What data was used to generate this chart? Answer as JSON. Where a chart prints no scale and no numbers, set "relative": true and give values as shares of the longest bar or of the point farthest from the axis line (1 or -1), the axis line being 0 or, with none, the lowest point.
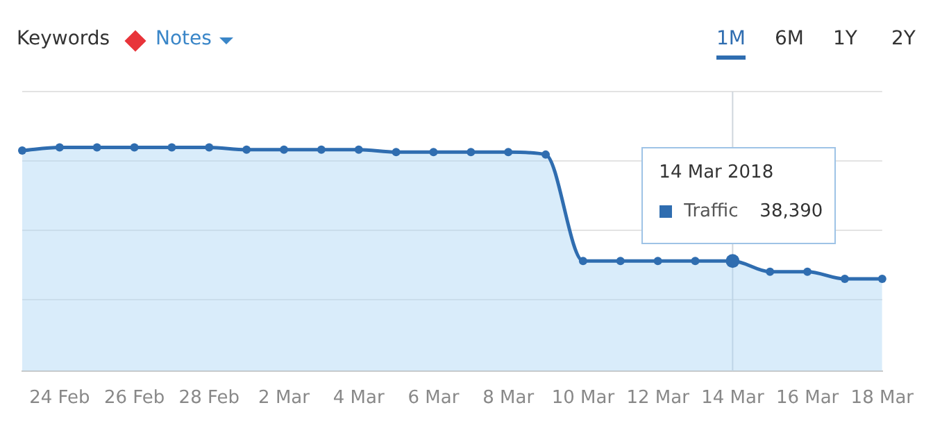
{
  "chart_data": {
    "type": "area",
    "relative": true,
    "categories": [
      null,
      "24 Feb",
      null,
      "26 Feb",
      null,
      "28 Feb",
      null,
      "2 Mar",
      null,
      "4 Mar",
      null,
      "6 Mar",
      null,
      "8 Mar",
      null,
      "10 Mar",
      null,
      "12 Mar",
      null,
      "14 Mar",
      null,
      "16 Mar",
      null,
      "18 Mar"
    ],
    "series": [
      {
        "name": "Traffic",
        "color": "#2f6db0",
        "values": [
          0.986,
          1,
          1,
          1,
          1,
          1,
          0.99,
          0.99,
          0.99,
          0.99,
          0.979,
          0.979,
          0.979,
          0.979,
          0.968,
          0.492,
          0.492,
          0.492,
          0.492,
          0.492,
          0.444,
          0.444,
          0.412,
          0.412
        ]
      }
    ],
    "marker": "circle",
    "grid": "y",
    "legend": "top right",
    "ref_lines": [
      {
        "axis": "x",
        "value": "14 Mar",
        "color": "#cfd6dd"
      }
    ],
    "annotations": [
      "Keywords",
      "Notes",
      "1M",
      "6M",
      "1Y",
      "2Y",
      "14 Mar 2018",
      "38,390"
    ]
  }
}
